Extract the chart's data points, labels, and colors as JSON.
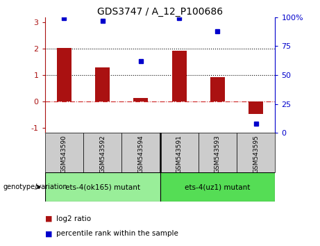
{
  "title": "GDS3747 / A_12_P100686",
  "categories": [
    "GSM543590",
    "GSM543592",
    "GSM543594",
    "GSM543591",
    "GSM543593",
    "GSM543595"
  ],
  "log2_ratio": [
    2.02,
    1.3,
    0.12,
    1.93,
    0.92,
    -0.48
  ],
  "percentile_rank": [
    99,
    97,
    62,
    99,
    88,
    8
  ],
  "bar_color": "#aa1111",
  "dot_color": "#0000cc",
  "ylim_left": [
    -1.2,
    3.2
  ],
  "ylim_right": [
    0,
    100
  ],
  "hline_y": [
    0,
    1,
    2
  ],
  "hline_colors": [
    "#cc2222",
    "#000000",
    "#000000"
  ],
  "hline_styles": [
    "dashdot",
    "dotted",
    "dotted"
  ],
  "group1_label": "ets-4(ok165) mutant",
  "group2_label": "ets-4(uz1) mutant",
  "group1_color": "#99ee99",
  "group2_color": "#55dd55",
  "tick_label_area_color": "#cccccc",
  "legend_red_label": "log2 ratio",
  "legend_blue_label": "percentile rank within the sample",
  "genotype_label": "genotype/variation",
  "right_ticks": [
    0,
    25,
    50,
    75,
    100
  ],
  "right_tick_labels": [
    "0",
    "25",
    "50",
    "75",
    "100%"
  ]
}
